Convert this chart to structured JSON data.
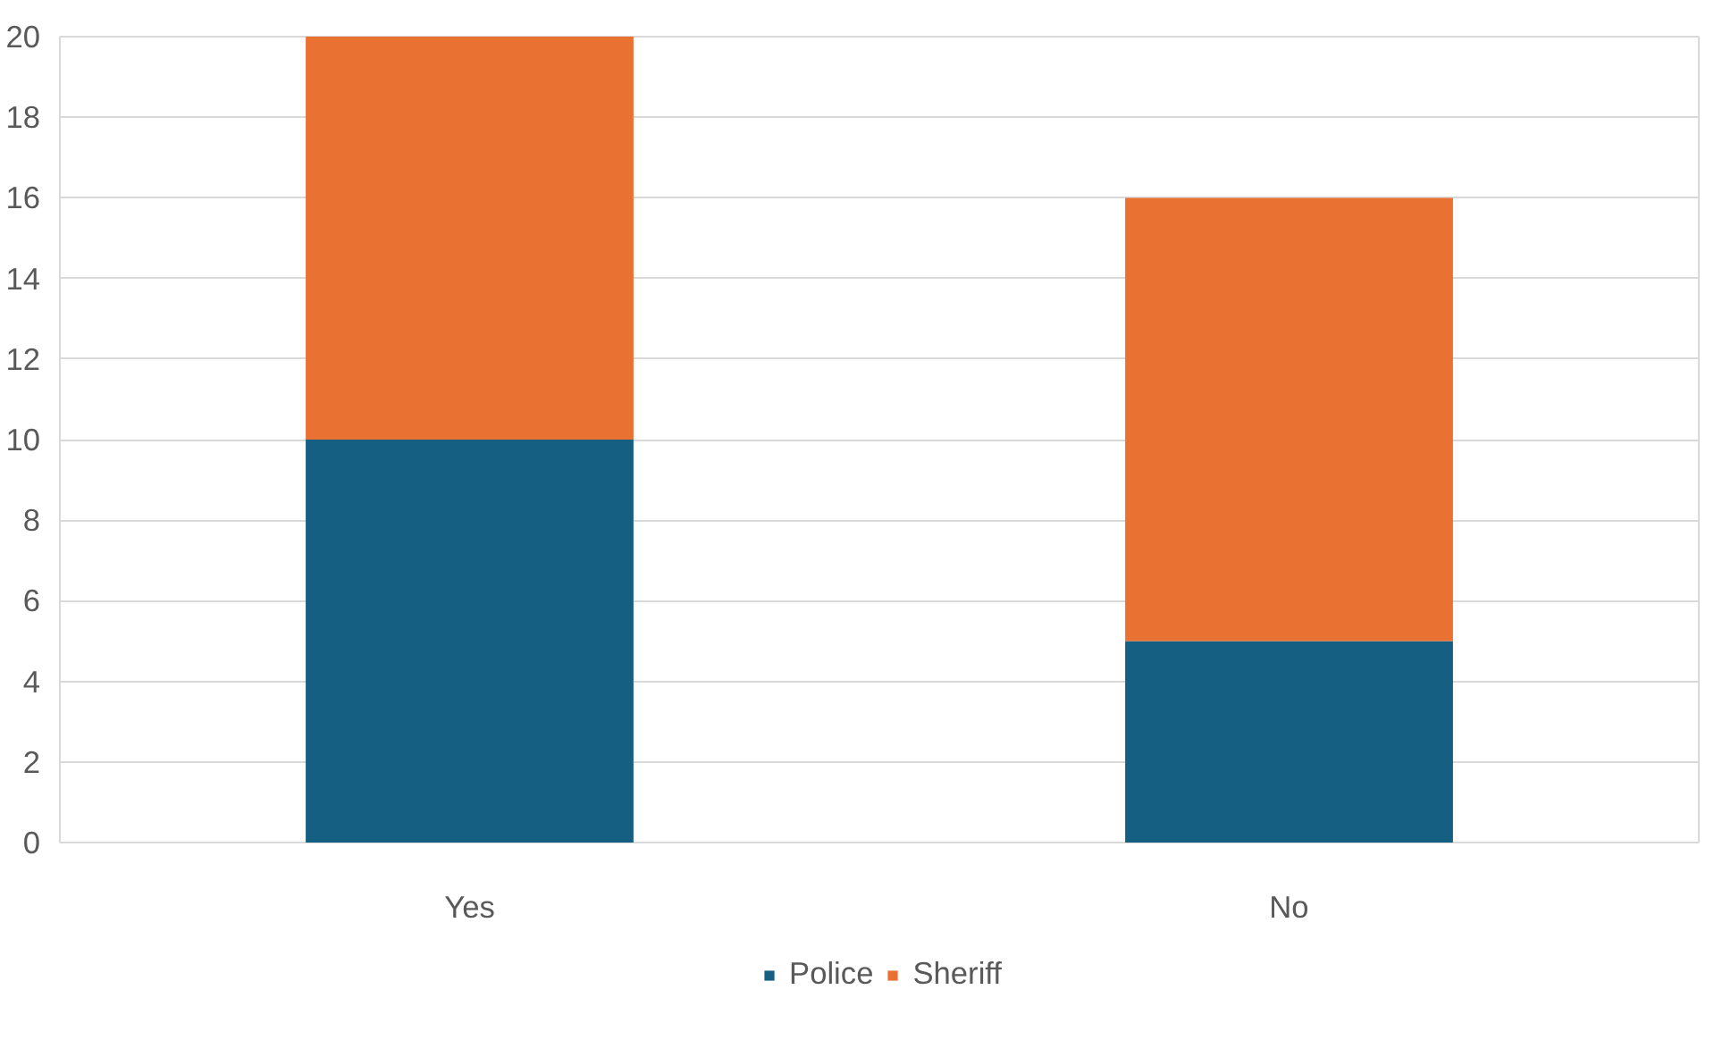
{
  "chart_data": {
    "type": "bar",
    "stacked": true,
    "categories": [
      "Yes",
      "No"
    ],
    "series": [
      {
        "name": "Police",
        "color": "#156082",
        "values": [
          10,
          5
        ]
      },
      {
        "name": "Sheriff",
        "color": "#e97132",
        "values": [
          10,
          11
        ]
      }
    ],
    "ylim": [
      0,
      20
    ],
    "yticks": [
      0,
      2,
      4,
      6,
      8,
      10,
      12,
      14,
      16,
      18,
      20
    ],
    "grid": "y",
    "legend": "bottom"
  }
}
